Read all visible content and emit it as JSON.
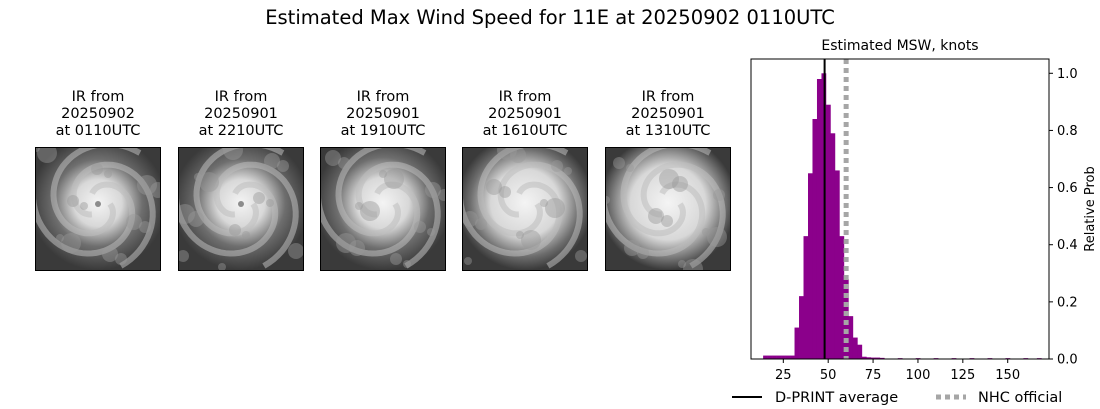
{
  "figure": {
    "title": "Estimated Max Wind Speed for 11E at 20250902 0110UTC"
  },
  "ir_panels": [
    {
      "label_lines": [
        "IR from",
        "20250902",
        "at 0110UTC"
      ],
      "style": "eye-spiral"
    },
    {
      "label_lines": [
        "IR from",
        "20250901",
        "at 2210UTC"
      ],
      "style": "eye-spiral"
    },
    {
      "label_lines": [
        "IR from",
        "20250901",
        "at 1910UTC"
      ],
      "style": "spiral"
    },
    {
      "label_lines": [
        "IR from",
        "20250901",
        "at 1610UTC"
      ],
      "style": "cdo"
    },
    {
      "label_lines": [
        "IR from",
        "20250901",
        "at 1310UTC"
      ],
      "style": "cdo-large"
    }
  ],
  "chart_data": {
    "type": "bar",
    "title": "Estimated MSW, knots",
    "ylabel": "Relative Prob",
    "xlabel": "",
    "xlim": [
      7,
      173
    ],
    "ylim": [
      0,
      1.05
    ],
    "xticks": [
      25,
      50,
      75,
      100,
      125,
      150
    ],
    "yticks": [
      0.0,
      0.2,
      0.4,
      0.6,
      0.8,
      1.0
    ],
    "bin_width": 2.5,
    "bars": [
      {
        "x": 15.0,
        "value": 0.012
      },
      {
        "x": 17.5,
        "value": 0.012
      },
      {
        "x": 20.0,
        "value": 0.012
      },
      {
        "x": 22.5,
        "value": 0.012
      },
      {
        "x": 25.0,
        "value": 0.012
      },
      {
        "x": 27.5,
        "value": 0.012
      },
      {
        "x": 30.0,
        "value": 0.012
      },
      {
        "x": 32.5,
        "value": 0.11
      },
      {
        "x": 35.0,
        "value": 0.22
      },
      {
        "x": 37.5,
        "value": 0.43
      },
      {
        "x": 40.0,
        "value": 0.65
      },
      {
        "x": 42.5,
        "value": 0.84
      },
      {
        "x": 45.0,
        "value": 0.98
      },
      {
        "x": 47.5,
        "value": 1.0
      },
      {
        "x": 50.0,
        "value": 0.89
      },
      {
        "x": 52.5,
        "value": 0.79
      },
      {
        "x": 55.0,
        "value": 0.66
      },
      {
        "x": 57.5,
        "value": 0.43
      },
      {
        "x": 60.0,
        "value": 0.28
      },
      {
        "x": 62.5,
        "value": 0.15
      },
      {
        "x": 65.0,
        "value": 0.075
      },
      {
        "x": 67.5,
        "value": 0.05
      },
      {
        "x": 70.0,
        "value": 0.008
      },
      {
        "x": 72.5,
        "value": 0.006
      },
      {
        "x": 75.0,
        "value": 0.005
      },
      {
        "x": 77.5,
        "value": 0.005
      },
      {
        "x": 80.0,
        "value": 0.004
      },
      {
        "x": 90.0,
        "value": 0.003
      },
      {
        "x": 100.0,
        "value": 0.003
      },
      {
        "x": 110.0,
        "value": 0.003
      },
      {
        "x": 120.0,
        "value": 0.003
      },
      {
        "x": 130.0,
        "value": 0.003
      },
      {
        "x": 140.0,
        "value": 0.003
      },
      {
        "x": 150.0,
        "value": 0.003
      },
      {
        "x": 160.0,
        "value": 0.003
      },
      {
        "x": 167.5,
        "value": 0.003
      }
    ],
    "bar_color": "#8b008b",
    "dprint_average": 48,
    "nhc_official": 60,
    "dprint_color": "#000000",
    "nhc_color": "#a6a6a6",
    "legend": {
      "placement": "below",
      "entries": [
        {
          "label": "D-PRINT average",
          "style": "solid",
          "color": "#000000"
        },
        {
          "label": "NHC official",
          "style": "dotted",
          "color": "#a6a6a6"
        }
      ]
    }
  }
}
